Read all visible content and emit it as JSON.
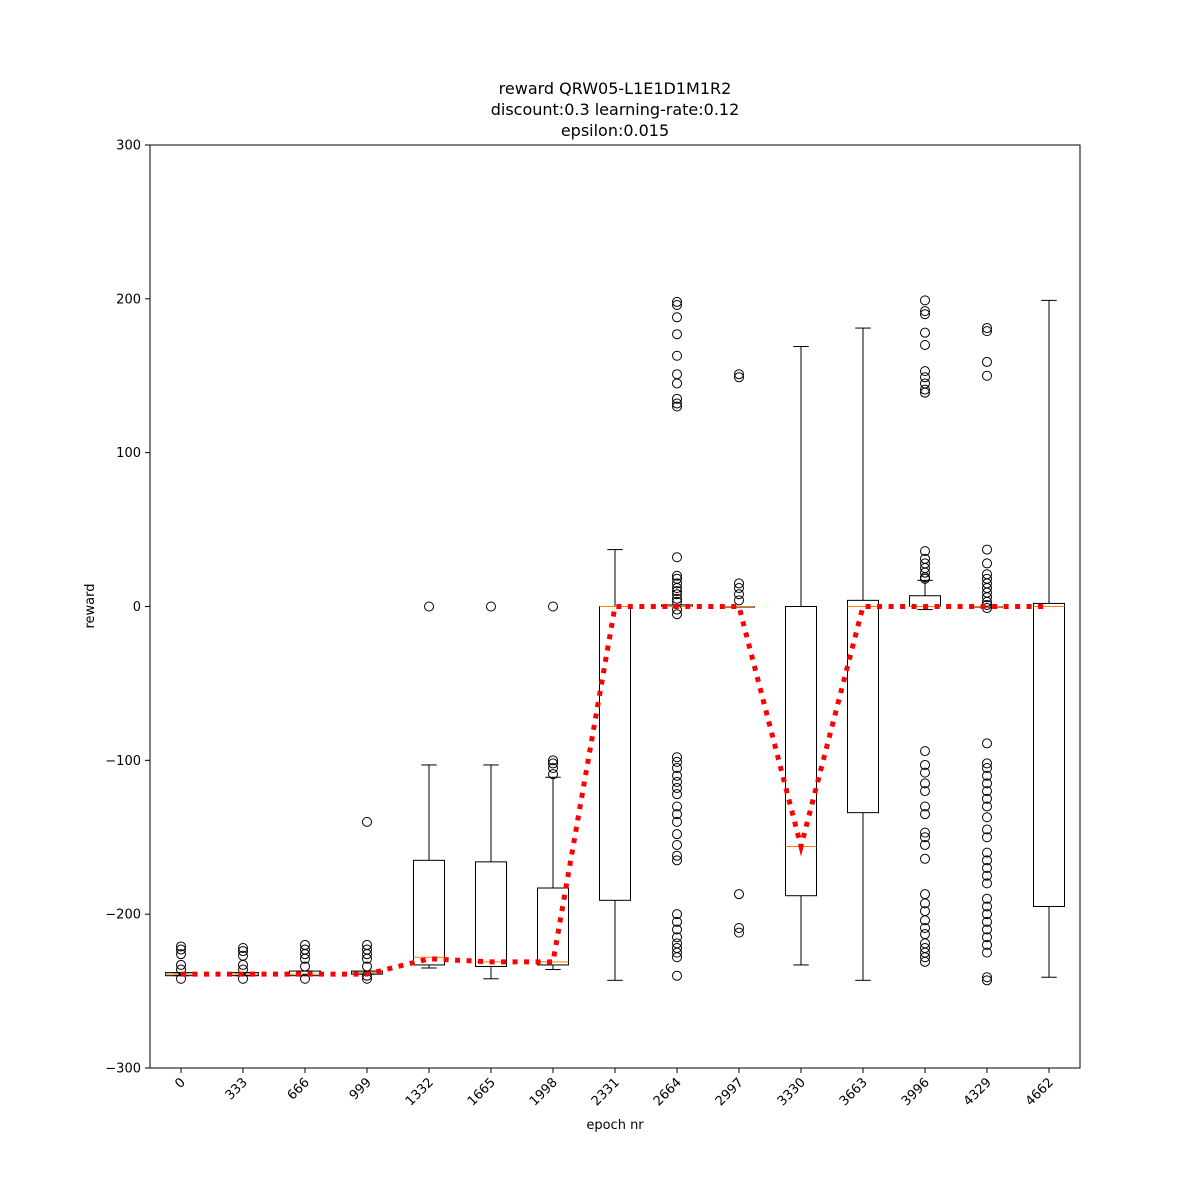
{
  "chart_data": {
    "type": "box",
    "title_lines": [
      "reward QRW05-L1E1D1M1R2",
      "discount:0.3 learning-rate:0.12",
      "epsilon:0.015"
    ],
    "xlabel": "epoch nr",
    "ylabel": "reward",
    "ylim": [
      -300,
      300
    ],
    "yticks": [
      -300,
      -200,
      -100,
      0,
      100,
      200,
      300
    ],
    "categories": [
      "0",
      "333",
      "666",
      "999",
      "1332",
      "1665",
      "1998",
      "2331",
      "2664",
      "2997",
      "3330",
      "3663",
      "3996",
      "4329",
      "4662"
    ],
    "boxes": [
      {
        "whislo": -240,
        "q1": -240,
        "med": -239,
        "q3": -238,
        "whishi": -238,
        "fliers": [
          -221,
          -223,
          -226,
          -233,
          -236,
          -242
        ]
      },
      {
        "whislo": -240,
        "q1": -240,
        "med": -239,
        "q3": -238,
        "whishi": -238,
        "fliers": [
          -222,
          -224,
          -227,
          -233,
          -236,
          -242
        ]
      },
      {
        "whislo": -240,
        "q1": -240,
        "med": -239,
        "q3": -237,
        "whishi": -237,
        "fliers": [
          -220,
          -223,
          -226,
          -229,
          -234,
          -242
        ]
      },
      {
        "whislo": -239,
        "q1": -239,
        "med": -238,
        "q3": -237,
        "whishi": -237,
        "fliers": [
          -140,
          -220,
          -223,
          -226,
          -229,
          -234,
          -240,
          -242
        ]
      },
      {
        "whislo": -235,
        "q1": -233,
        "med": -228,
        "q3": -165,
        "whishi": -103,
        "fliers": [
          0
        ]
      },
      {
        "whislo": -242,
        "q1": -234,
        "med": -231,
        "q3": -166,
        "whishi": -103,
        "fliers": [
          0
        ]
      },
      {
        "whislo": -236,
        "q1": -233,
        "med": -231,
        "q3": -183,
        "whishi": -111,
        "fliers": [
          -100,
          -102,
          -105,
          -109,
          0
        ]
      },
      {
        "whislo": -243,
        "q1": -191,
        "med": 0,
        "q3": 0,
        "whishi": 37,
        "fliers": []
      },
      {
        "whislo": 0,
        "q1": 0,
        "med": 0,
        "q3": 1,
        "whishi": 1,
        "fliers": [
          198,
          196,
          188,
          177,
          163,
          151,
          145,
          135,
          132,
          130,
          32,
          20,
          18,
          15,
          12,
          10,
          8,
          5,
          3,
          -2,
          -5,
          -98,
          -101,
          -105,
          -110,
          -114,
          -118,
          -122,
          -130,
          -135,
          -140,
          -148,
          -155,
          -162,
          -165,
          -200,
          -205,
          -210,
          -215,
          -219,
          -222,
          -225,
          -228,
          -240
        ]
      },
      {
        "whislo": 0,
        "q1": 0,
        "med": 0,
        "q3": 0,
        "whishi": 0,
        "fliers": [
          151,
          149,
          15,
          12,
          8,
          4,
          -187,
          -209,
          -212
        ]
      },
      {
        "whislo": -233,
        "q1": -188,
        "med": -156,
        "q3": 0,
        "whishi": 169,
        "fliers": []
      },
      {
        "whislo": -243,
        "q1": -134,
        "med": 0,
        "q3": 4,
        "whishi": 181,
        "fliers": []
      },
      {
        "whislo": -2,
        "q1": 0,
        "med": 0,
        "q3": 7,
        "whishi": 17,
        "fliers": [
          199,
          192,
          190,
          178,
          170,
          153,
          149,
          145,
          141,
          139,
          36,
          31,
          28,
          25,
          22,
          19,
          18,
          -94,
          -103,
          -108,
          -115,
          -120,
          -130,
          -135,
          -147,
          -150,
          -155,
          -164,
          -187,
          -193,
          -198,
          -204,
          -209,
          -213,
          -219,
          -222,
          -225,
          -228,
          -231
        ]
      },
      {
        "whislo": 0,
        "q1": 0,
        "med": 0,
        "q3": 0,
        "whishi": 0,
        "fliers": [
          181,
          179,
          159,
          150,
          37,
          28,
          21,
          18,
          15,
          12,
          9,
          6,
          3,
          1,
          -1,
          -89,
          -102,
          -105,
          -110,
          -115,
          -120,
          -125,
          -130,
          -137,
          -145,
          -150,
          -160,
          -165,
          -170,
          -175,
          -180,
          -190,
          -195,
          -200,
          -205,
          -210,
          -215,
          -220,
          -225,
          -241,
          -243
        ]
      },
      {
        "whislo": -241,
        "q1": -195,
        "med": 0,
        "q3": 2,
        "whishi": 199,
        "fliers": []
      }
    ],
    "mean_line": {
      "values": [
        -239,
        -239,
        -239,
        -239,
        -229,
        -231,
        -231,
        0,
        0,
        0,
        -156,
        0,
        0,
        0,
        0
      ],
      "color": "#ff0000",
      "style": "dotted"
    },
    "colors": {
      "box": "#000000",
      "median": "#ff7f0e",
      "mean": "#ff0000"
    },
    "grid": false
  }
}
